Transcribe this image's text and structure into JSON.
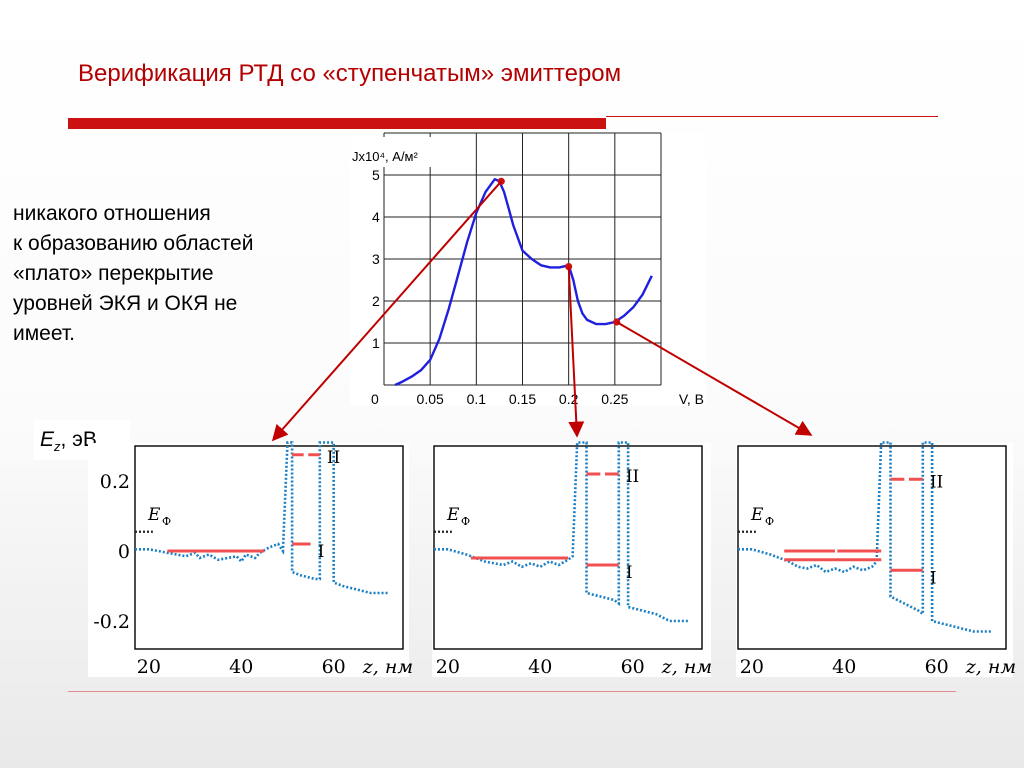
{
  "slide": {
    "title": "Верификация РТД со «ступенчатым» эмиттером",
    "body_lines": [
      "никакого отношения",
      "к образованию областей",
      "«плато» перекрытие",
      "уровней ЭКЯ и ОКЯ не",
      "имеет."
    ],
    "ez_label": {
      "symbol": "E",
      "sub": "z",
      "unit": ", эВ"
    },
    "colors": {
      "accent": "#cc1111",
      "curve": "#1f1fe0",
      "arrow": "#c00000",
      "marker": "#cc1111",
      "band": "#1a7fc4",
      "level": "#f05050"
    }
  },
  "chart_data": [
    {
      "type": "line",
      "title": "",
      "ylabel": "Jx10⁴, А/м²",
      "xlabel": "V, В",
      "xlim": [
        0,
        0.3
      ],
      "ylim": [
        0,
        6
      ],
      "xticks": [
        "0",
        "0.05",
        "0.1",
        "0.15",
        "0.2",
        "0.25"
      ],
      "yticks": [
        "1",
        "2",
        "3",
        "4",
        "5"
      ],
      "grid": true,
      "series": [
        {
          "x": [
            0.012,
            0.02,
            0.03,
            0.04,
            0.05,
            0.06,
            0.07,
            0.08,
            0.09,
            0.1,
            0.11,
            0.12,
            0.125,
            0.13,
            0.135,
            0.14,
            0.145,
            0.15,
            0.16,
            0.17,
            0.18,
            0.19,
            0.2,
            0.205,
            0.21,
            0.215,
            0.22,
            0.23,
            0.24,
            0.25,
            0.26,
            0.27,
            0.28,
            0.29
          ],
          "y": [
            0.0,
            0.08,
            0.2,
            0.35,
            0.6,
            1.1,
            1.8,
            2.6,
            3.4,
            4.1,
            4.6,
            4.9,
            4.85,
            4.6,
            4.2,
            3.8,
            3.5,
            3.2,
            3.0,
            2.85,
            2.8,
            2.8,
            2.85,
            2.5,
            2.0,
            1.7,
            1.55,
            1.45,
            1.45,
            1.5,
            1.65,
            1.85,
            2.15,
            2.6
          ]
        }
      ],
      "markers": [
        {
          "x": 0.127,
          "y": 4.85
        },
        {
          "x": 0.2,
          "y": 2.82
        },
        {
          "x": 0.252,
          "y": 1.5
        }
      ]
    },
    {
      "type": "line",
      "xlabel": "z, нм",
      "xlim": [
        17,
        75
      ],
      "ylim": [
        -0.28,
        0.3
      ],
      "xticks": [
        "20",
        "40",
        "60"
      ],
      "yticks": [
        "0.2",
        "0",
        "-0.2"
      ],
      "fermi_label": "E",
      "fermi_sub": "Ф",
      "level_labels": [
        "II",
        "I"
      ],
      "fermi_level": 0.055,
      "fermi_x": [
        17,
        20
      ],
      "band": [
        [
          17,
          0.005
        ],
        [
          20,
          0.005
        ],
        [
          22,
          0.0
        ],
        [
          24,
          -0.005
        ],
        [
          26,
          -0.01
        ],
        [
          28,
          -0.015
        ],
        [
          30,
          -0.005
        ],
        [
          31,
          -0.02
        ],
        [
          33,
          -0.01
        ],
        [
          35,
          -0.025
        ],
        [
          37,
          -0.02
        ],
        [
          39,
          -0.015
        ],
        [
          40,
          -0.03
        ],
        [
          41,
          -0.01
        ],
        [
          43,
          -0.02
        ],
        [
          44,
          -0.005
        ],
        [
          46,
          0.01
        ],
        [
          48,
          0.02
        ],
        [
          49,
          0.0
        ],
        [
          50,
          0.31
        ],
        [
          50,
          0.31
        ],
        [
          51,
          0.31
        ],
        [
          51,
          -0.06
        ],
        [
          53,
          -0.07
        ],
        [
          56,
          -0.08
        ],
        [
          57,
          -0.08
        ],
        [
          57,
          0.31
        ],
        [
          58,
          0.31
        ],
        [
          59,
          0.31
        ],
        [
          60,
          0.31
        ],
        [
          60,
          -0.09
        ],
        [
          62,
          -0.1
        ],
        [
          65,
          -0.11
        ],
        [
          68,
          -0.12
        ],
        [
          72,
          -0.12
        ]
      ],
      "levels": [
        {
          "x": [
            24,
            45
          ],
          "y": 0.0
        },
        {
          "x": [
            51,
            55
          ],
          "y": 0.02
        },
        {
          "x": [
            51,
            53.5
          ],
          "y": 0.275
        },
        {
          "x": [
            54.5,
            57
          ],
          "y": 0.275
        }
      ]
    },
    {
      "type": "line",
      "xlabel": "z, нм",
      "xlim": [
        17,
        75
      ],
      "ylim": [
        -0.28,
        0.3
      ],
      "xticks": [
        "20",
        "40",
        "60"
      ],
      "yticks": [],
      "fermi_label": "E",
      "fermi_sub": "Ф",
      "level_labels": [
        "II",
        "I"
      ],
      "fermi_level": 0.055,
      "fermi_x": [
        17,
        20
      ],
      "band": [
        [
          17,
          0.005
        ],
        [
          20,
          0.005
        ],
        [
          24,
          -0.01
        ],
        [
          26,
          -0.02
        ],
        [
          28,
          -0.03
        ],
        [
          30,
          -0.035
        ],
        [
          32,
          -0.04
        ],
        [
          34,
          -0.03
        ],
        [
          36,
          -0.045
        ],
        [
          38,
          -0.035
        ],
        [
          40,
          -0.045
        ],
        [
          42,
          -0.03
        ],
        [
          44,
          -0.04
        ],
        [
          46,
          -0.025
        ],
        [
          47,
          -0.015
        ],
        [
          48,
          0.31
        ],
        [
          48,
          0.31
        ],
        [
          50,
          0.31
        ],
        [
          50,
          -0.12
        ],
        [
          53,
          -0.13
        ],
        [
          56,
          -0.14
        ],
        [
          57,
          -0.15
        ],
        [
          57,
          0.31
        ],
        [
          59,
          0.31
        ],
        [
          59,
          -0.16
        ],
        [
          62,
          -0.17
        ],
        [
          65,
          -0.18
        ],
        [
          68,
          -0.2
        ],
        [
          72,
          -0.2
        ]
      ],
      "levels": [
        {
          "x": [
            25,
            46
          ],
          "y": -0.02
        },
        {
          "x": [
            50,
            57
          ],
          "y": -0.04
        },
        {
          "x": [
            50,
            53
          ],
          "y": 0.22
        },
        {
          "x": [
            54,
            57
          ],
          "y": 0.22
        }
      ]
    },
    {
      "type": "line",
      "xlabel": "z, нм",
      "xlim": [
        17,
        75
      ],
      "ylim": [
        -0.28,
        0.3
      ],
      "xticks": [
        "20",
        "40",
        "60"
      ],
      "yticks": [],
      "fermi_label": "E",
      "fermi_sub": "Ф",
      "level_labels": [
        "II",
        "I"
      ],
      "fermi_level": 0.055,
      "fermi_x": [
        17,
        20
      ],
      "band": [
        [
          17,
          0.005
        ],
        [
          20,
          0.005
        ],
        [
          24,
          -0.01
        ],
        [
          26,
          -0.02
        ],
        [
          28,
          -0.03
        ],
        [
          30,
          -0.045
        ],
        [
          32,
          -0.05
        ],
        [
          34,
          -0.04
        ],
        [
          36,
          -0.06
        ],
        [
          38,
          -0.05
        ],
        [
          40,
          -0.06
        ],
        [
          42,
          -0.045
        ],
        [
          44,
          -0.055
        ],
        [
          46,
          -0.045
        ],
        [
          47,
          -0.03
        ],
        [
          48,
          0.31
        ],
        [
          48,
          0.31
        ],
        [
          50,
          0.31
        ],
        [
          50,
          -0.13
        ],
        [
          53,
          -0.15
        ],
        [
          56,
          -0.17
        ],
        [
          57,
          -0.18
        ],
        [
          57,
          0.31
        ],
        [
          59,
          0.31
        ],
        [
          59,
          -0.2
        ],
        [
          62,
          -0.21
        ],
        [
          65,
          -0.22
        ],
        [
          68,
          -0.23
        ],
        [
          72,
          -0.23
        ]
      ],
      "levels": [
        {
          "x": [
            27,
            38
          ],
          "y": 0.0
        },
        {
          "x": [
            38.5,
            48
          ],
          "y": 0.0
        },
        {
          "x": [
            27,
            48
          ],
          "y": -0.025
        },
        {
          "x": [
            50,
            57
          ],
          "y": -0.055
        },
        {
          "x": [
            50,
            53
          ],
          "y": 0.205
        },
        {
          "x": [
            54,
            57
          ],
          "y": 0.205
        }
      ]
    }
  ]
}
